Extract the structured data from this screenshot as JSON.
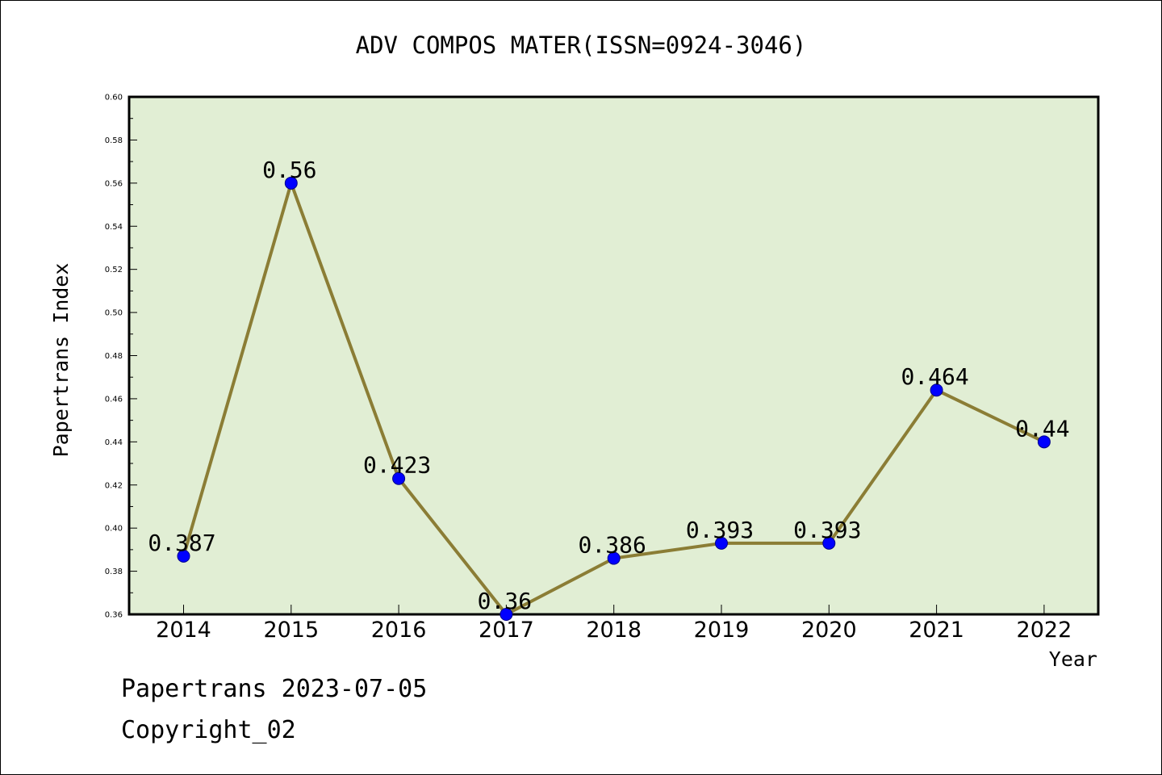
{
  "chart_data": {
    "type": "line",
    "title": "ADV COMPOS MATER(ISSN=0924-3046)",
    "xlabel": "Year",
    "ylabel": "Papertrans Index",
    "categories": [
      "2014",
      "2015",
      "2016",
      "2017",
      "2018",
      "2019",
      "2020",
      "2021",
      "2022"
    ],
    "series": [
      {
        "values": [
          0.387,
          0.56,
          0.423,
          0.36,
          0.386,
          0.393,
          0.393,
          0.464,
          0.44
        ],
        "labels": [
          "0.387",
          "0.56",
          "0.423",
          "0.36",
          "0.386",
          "0.393",
          "0.393",
          "0.464",
          "0.44"
        ]
      }
    ],
    "ylim": [
      0.36,
      0.6
    ],
    "yticks": [
      "0.36",
      "0.38",
      "0.40",
      "0.42",
      "0.44",
      "0.46",
      "0.48",
      "0.50",
      "0.52",
      "0.54",
      "0.56",
      "0.58",
      "0.60"
    ],
    "grid": false,
    "legend": "none",
    "colors": {
      "plot_background": "#e1eed4",
      "line": "#8b7d35",
      "marker": "#0000ff"
    }
  },
  "footer": {
    "date_line": "Papertrans 2023-07-05",
    "copyright": "Copyright_02"
  }
}
